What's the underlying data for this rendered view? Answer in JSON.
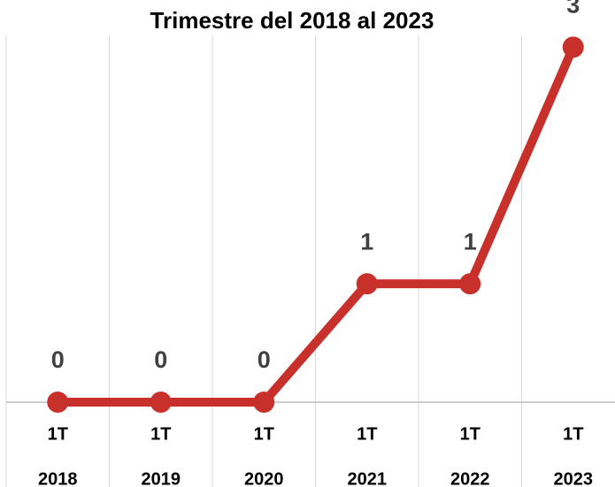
{
  "chart_data": {
    "type": "line",
    "title": "Trimestre del 2018 al 2023",
    "categories": [
      [
        "1T",
        "2018"
      ],
      [
        "1T",
        "2019"
      ],
      [
        "1T",
        "2020"
      ],
      [
        "1T",
        "2021"
      ],
      [
        "1T",
        "2022"
      ],
      [
        "1T",
        "2023"
      ]
    ],
    "series": [
      {
        "color": "#c8312b",
        "values": [
          0,
          0,
          0,
          1,
          1,
          3
        ]
      }
    ],
    "ylim": [
      0,
      3.1
    ],
    "grid": true
  }
}
